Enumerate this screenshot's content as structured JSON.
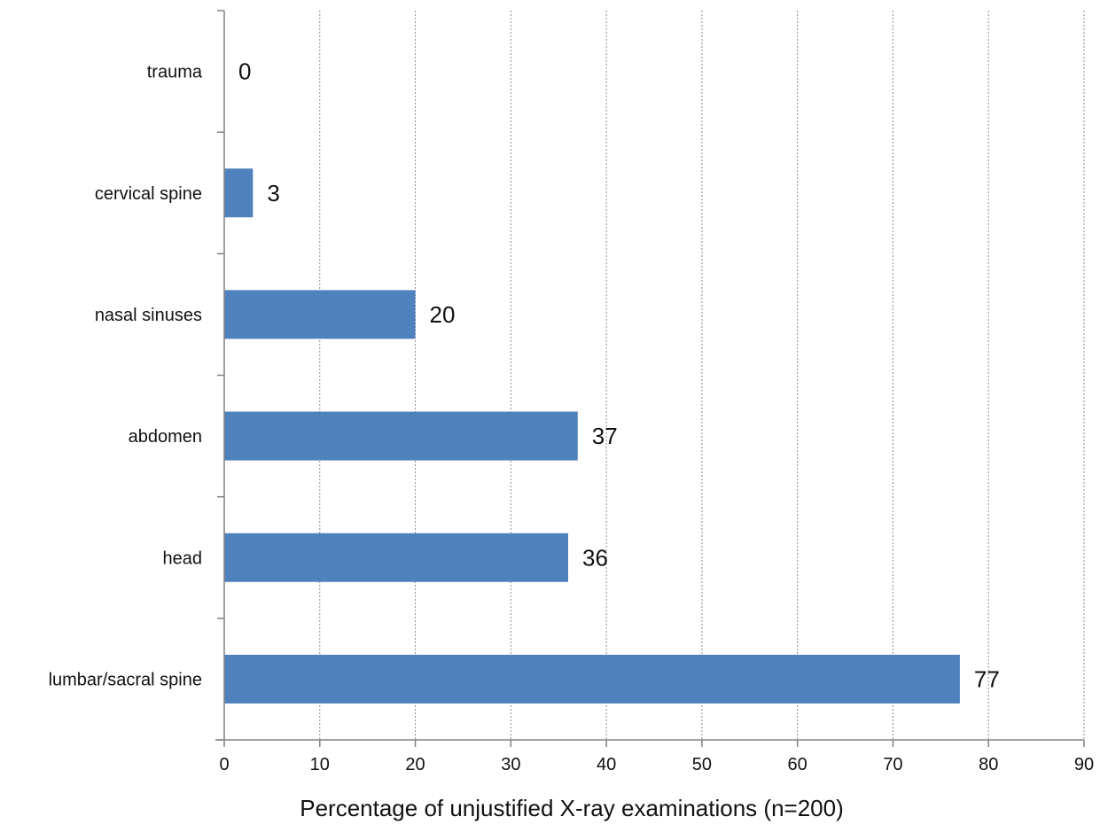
{
  "chart_data": {
    "type": "bar",
    "orientation": "horizontal",
    "categories": [
      "trauma",
      "cervical spine",
      "nasal sinuses",
      "abdomen",
      "head",
      "lumbar/sacral spine"
    ],
    "values": [
      0,
      3,
      20,
      37,
      36,
      77
    ],
    "data_labels": [
      "0",
      "3",
      "20",
      "37",
      "36",
      "77"
    ],
    "title": "",
    "xlabel": "Percentage of unjustified X-ray examinations (n=200)",
    "ylabel": "",
    "xlim": [
      0,
      90
    ],
    "x_ticks": [
      0,
      10,
      20,
      30,
      40,
      50,
      60,
      70,
      80,
      90
    ],
    "x_tick_labels": [
      "0",
      "10",
      "20",
      "30",
      "40",
      "50",
      "60",
      "70",
      "80",
      "90"
    ],
    "grid": "vertical dotted",
    "legend": "none",
    "bar_color": "#4f81bd"
  }
}
